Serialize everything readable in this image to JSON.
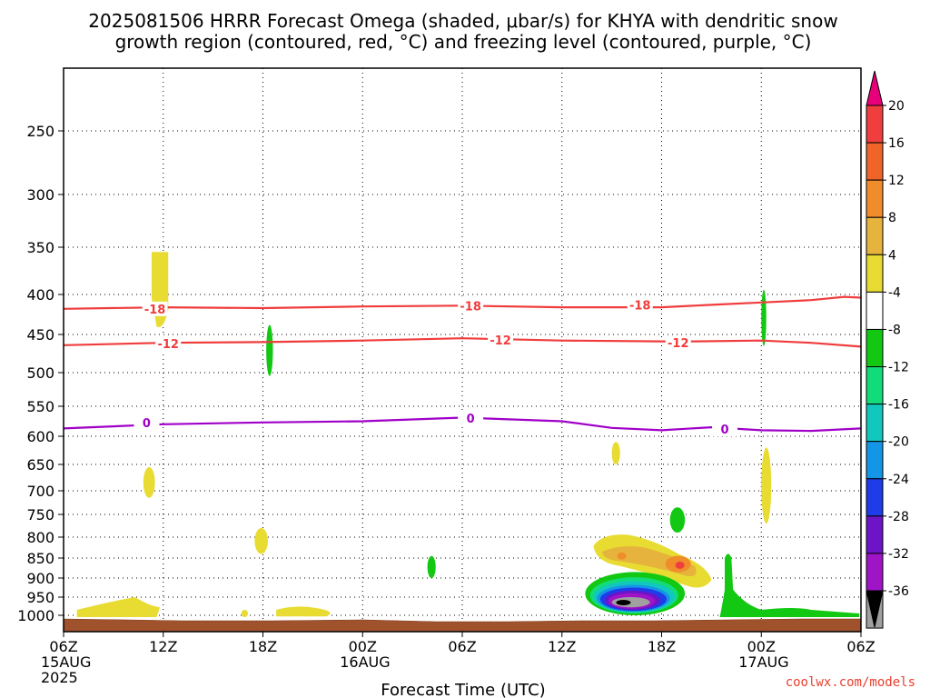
{
  "title_line1": "2025081506 HRRR Forecast Omega (shaded, μbar/s) for KHYA with dendritic snow",
  "title_line2": "growth region (contoured, red, °C) and freezing level (contoured, purple, °C)",
  "credit": "coolwx.com/models",
  "chart_data": {
    "type": "time-height cross section",
    "xlabel": "Forecast Time (UTC)",
    "x_hours": [
      0,
      6,
      12,
      18,
      24,
      30,
      36,
      42,
      48
    ],
    "xtick_labels": [
      {
        "lines": [
          "06Z",
          "15AUG",
          "2025"
        ]
      },
      {
        "lines": [
          "12Z"
        ]
      },
      {
        "lines": [
          "18Z"
        ]
      },
      {
        "lines": [
          "00Z",
          "16AUG"
        ]
      },
      {
        "lines": [
          "06Z"
        ]
      },
      {
        "lines": [
          "12Z"
        ]
      },
      {
        "lines": [
          "18Z"
        ]
      },
      {
        "lines": [
          "00Z",
          "17AUG"
        ]
      },
      {
        "lines": [
          "06Z"
        ]
      }
    ],
    "y_pressure_levels": [
      250,
      300,
      350,
      400,
      450,
      500,
      550,
      600,
      650,
      700,
      750,
      800,
      850,
      900,
      950,
      1000
    ],
    "yaxis": "pressure (hPa), reversed",
    "grid": "dotted",
    "colorbar": {
      "labels": [
        20,
        16,
        12,
        8,
        4,
        -4,
        -8,
        -12,
        -16,
        -20,
        -24,
        -28,
        -32,
        -36
      ],
      "colors": [
        "#e8007a",
        "#f03e3e",
        "#f0642a",
        "#f08c2a",
        "#e6b43c",
        "#e8dc32",
        "#ffffff",
        "#12c812",
        "#12dc7a",
        "#12c8be",
        "#1496e6",
        "#1e3ce8",
        "#6e14c8",
        "#a014c8",
        "#a0a0a0",
        "#000000"
      ]
    },
    "contours": [
      {
        "name": "-18",
        "color": "#f03c3c",
        "points": [
          [
            0,
            418
          ],
          [
            6,
            416
          ],
          [
            12,
            417
          ],
          [
            18,
            415
          ],
          [
            24,
            414
          ],
          [
            30,
            416
          ],
          [
            36,
            416
          ],
          [
            39,
            413
          ],
          [
            42,
            410
          ],
          [
            45,
            407
          ],
          [
            47,
            403
          ],
          [
            48,
            404
          ]
        ],
        "labels": [
          {
            "x": 5.5,
            "p": 418
          },
          {
            "x": 24.5,
            "p": 414
          },
          {
            "x": 34.7,
            "p": 413
          }
        ]
      },
      {
        "name": "-12",
        "color": "#f03c3c",
        "points": [
          [
            0,
            464
          ],
          [
            6,
            461
          ],
          [
            12,
            460
          ],
          [
            18,
            458
          ],
          [
            24,
            455
          ],
          [
            30,
            458
          ],
          [
            36,
            459
          ],
          [
            38,
            459
          ],
          [
            42,
            458
          ],
          [
            45,
            461
          ],
          [
            48,
            466
          ]
        ],
        "labels": [
          {
            "x": 6.3,
            "p": 462
          },
          {
            "x": 26.3,
            "p": 457
          },
          {
            "x": 37.0,
            "p": 461
          }
        ]
      },
      {
        "name": "0",
        "color": "#a000c8",
        "points": [
          [
            0,
            587
          ],
          [
            6,
            580
          ],
          [
            12,
            577
          ],
          [
            18,
            575
          ],
          [
            24,
            569
          ],
          [
            30,
            575
          ],
          [
            33,
            586
          ],
          [
            36,
            590
          ],
          [
            39,
            585
          ],
          [
            42,
            590
          ],
          [
            45,
            591
          ],
          [
            48,
            587
          ]
        ],
        "labels": [
          {
            "x": 5.0,
            "p": 577
          },
          {
            "x": 24.5,
            "p": 570
          },
          {
            "x": 39.8,
            "p": 588
          }
        ]
      }
    ],
    "shaded_regions": [
      {
        "value": 6,
        "color": "#e8dc32",
        "desc": "upward/sinking weak region near 12Z 15AUG upper levels",
        "x": [
          5.5,
          6.4
        ],
        "p": [
          355,
          440
        ]
      },
      {
        "value": -6,
        "color": "#12c812",
        "x": [
          12.2,
          12.6
        ],
        "p": [
          438,
          505
        ]
      },
      {
        "value": 6,
        "color": "#e8dc32",
        "x": [
          4.8,
          5.5
        ],
        "p": [
          655,
          715
        ]
      },
      {
        "value": 6,
        "color": "#e8dc32",
        "x": [
          11.5,
          12.3
        ],
        "p": [
          780,
          840
        ]
      },
      {
        "value": -6,
        "color": "#12c812",
        "x": [
          21.9,
          22.4
        ],
        "p": [
          845,
          900
        ]
      },
      {
        "value": 6,
        "color": "#e8dc32",
        "x": [
          33.0,
          33.5
        ],
        "p": [
          610,
          650
        ]
      },
      {
        "value": -6,
        "color": "#12c812",
        "x": [
          36.5,
          37.4
        ],
        "p": [
          735,
          790
        ]
      },
      {
        "value": 6,
        "color": "#e8dc32",
        "x": [
          42.0,
          42.6
        ],
        "p": [
          620,
          770
        ]
      },
      {
        "value": -6,
        "color": "#12c812",
        "x": [
          42.0,
          42.3
        ],
        "p": [
          395,
          465
        ]
      },
      {
        "value": 10,
        "color": "#e6b43c",
        "desc": "low-level upward motion core",
        "x": [
          32.0,
          37.5
        ],
        "p": [
          790,
          930
        ]
      },
      {
        "value": -20,
        "color": "#1e3ce8",
        "desc": "strong negative omega core",
        "x": [
          31.5,
          36.5
        ],
        "p": [
          900,
          1000
        ]
      }
    ]
  }
}
